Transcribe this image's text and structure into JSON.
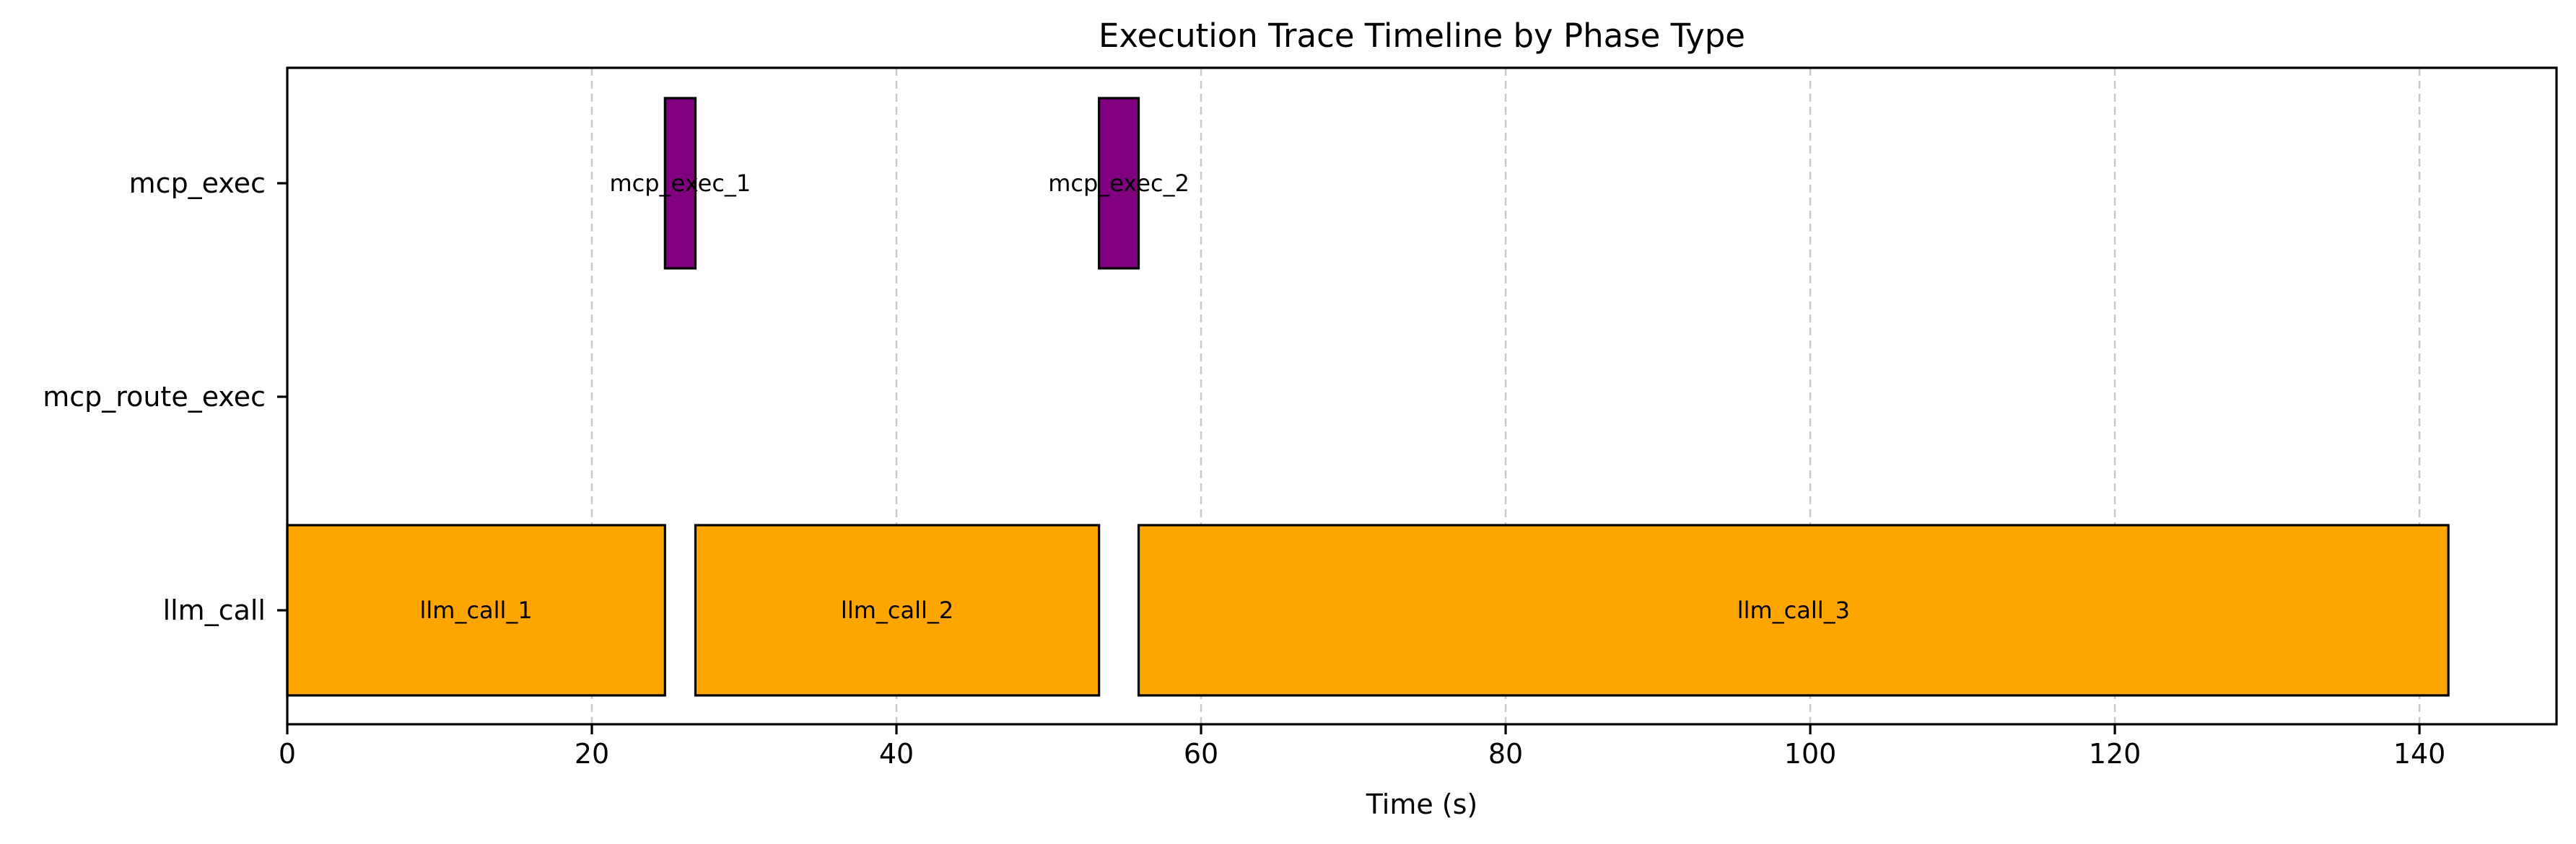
{
  "chart_data": {
    "type": "gantt",
    "title": "Execution Trace Timeline by Phase Type",
    "xlabel": "Time (s)",
    "ylabel": "",
    "xlim": [
      0,
      149
    ],
    "x_ticks": [
      0,
      20,
      40,
      60,
      80,
      100,
      120,
      140
    ],
    "grid": "x-axis dashed",
    "categories": [
      "llm_call",
      "mcp_route_exec",
      "mcp_exec"
    ],
    "phases": [
      {
        "label": "llm_call_1",
        "category": "llm_call",
        "start": 0,
        "end": 24.8,
        "color": "#FFA500"
      },
      {
        "label": "mcp_exec_1",
        "category": "mcp_exec",
        "start": 24.8,
        "end": 26.8,
        "color": "#800080"
      },
      {
        "label": "llm_call_2",
        "category": "llm_call",
        "start": 26.8,
        "end": 53.3,
        "color": "#FFA500"
      },
      {
        "label": "mcp_exec_2",
        "category": "mcp_exec",
        "start": 53.3,
        "end": 55.9,
        "color": "#800080"
      },
      {
        "label": "llm_call_3",
        "category": "llm_call",
        "start": 55.9,
        "end": 141.9,
        "color": "#FFA500"
      }
    ]
  }
}
